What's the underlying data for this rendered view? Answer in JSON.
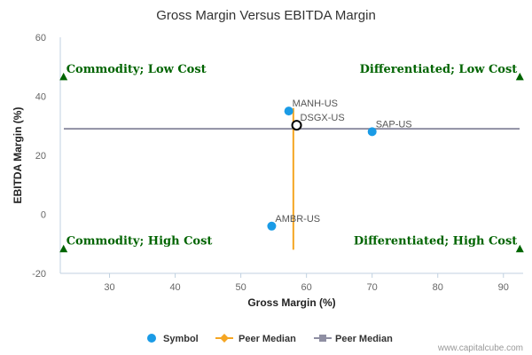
{
  "colors": {
    "symbol": "#1a9be6",
    "peer_median_vertical": "#f5a623",
    "peer_median_horizontal": "#8f8fa3",
    "quadrant": "#006400"
  },
  "chart_data": {
    "type": "scatter",
    "title": "Gross Margin Versus EBITDA Margin",
    "xlabel": "Gross Margin (%)",
    "ylabel": "EBITDA Margin (%)",
    "xlim": [
      22.5,
      93
    ],
    "ylim": [
      -20,
      60
    ],
    "xticks": [
      30,
      40,
      50,
      60,
      70,
      80,
      90
    ],
    "yticks": [
      -20,
      0,
      20,
      40,
      60
    ],
    "grid": false,
    "points": [
      {
        "label": "MANH-US",
        "x": 57.3,
        "y": 35
      },
      {
        "label": "DSGX-US",
        "x": 58.5,
        "y": 30.2,
        "highlight": true
      },
      {
        "label": "SAP-US",
        "x": 70,
        "y": 28
      },
      {
        "label": "AMBR-US",
        "x": 54.7,
        "y": -4
      }
    ],
    "peer_median": {
      "x": 58,
      "y": 29,
      "x_span": [
        -12,
        36
      ]
    },
    "quadrants": [
      {
        "label": "Commodity; Low Cost",
        "x": 23,
        "y": 46.5,
        "align": "left"
      },
      {
        "label": "Differentiated; Low Cost",
        "x": 92.5,
        "y": 46.5,
        "align": "right"
      },
      {
        "label": "Commodity; High Cost",
        "x": 23,
        "y": -11.8,
        "align": "left"
      },
      {
        "label": "Differentiated; High Cost",
        "x": 92.5,
        "y": -11.8,
        "align": "right"
      }
    ],
    "legend": {
      "position": "bottom",
      "items": [
        {
          "label": "Symbol",
          "kind": "symbol"
        },
        {
          "label": "Peer Median",
          "kind": "peer-median-vertical"
        },
        {
          "label": "Peer Median",
          "kind": "peer-median-horizontal"
        }
      ]
    },
    "credit": "www.capitalcube.com"
  }
}
